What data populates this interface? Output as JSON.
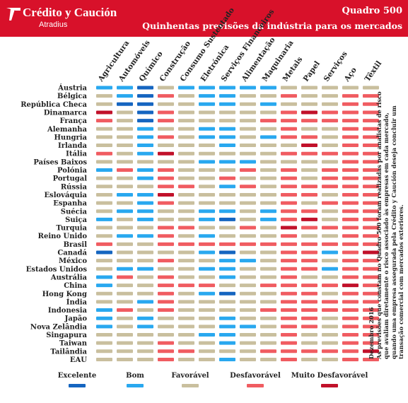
{
  "header": {
    "brand": "Crédito y Caución",
    "brand_sub": "Atradius",
    "title": "Quadro 500",
    "subtitle": "Quinhentas previsões da indústria para os mercados"
  },
  "note": {
    "date": "Dezembro 2016",
    "text": "As previsões que constam no Quadro 500 foram realizadas por analistas de risco que avaliam diretamente o risco associado às empresas em cada mercado, quando uma empresa assegurada pela Crédito y Caución deseja concluir um transação comercial com mercados exteriores."
  },
  "colors": {
    "banner": "#d8112a",
    "excelente": "#1565c0",
    "bom": "#29a8ef",
    "favoravel": "#c9bf9e",
    "desfavoravel": "#f05c61",
    "muito_desfavoravel": "#c1112a"
  },
  "chart_data": {
    "type": "heatmap",
    "title": "Quadro 500",
    "categories": [
      "Agricultura",
      "Automóveis",
      "Químico",
      "Construção",
      "Consumo Sustentado",
      "Eletrónica",
      "Serviços Financeiros",
      "Alimentação",
      "Maquinaria",
      "Metais",
      "Papel",
      "Serviços",
      "Aço",
      "Têxtil"
    ],
    "countries": [
      "Áustria",
      "Bélgica",
      "República Checa",
      "Dinamarca",
      "França",
      "Alemanha",
      "Hungria",
      "Irlanda",
      "Itália",
      "Países Baixos",
      "Polónia",
      "Portugal",
      "Rússia",
      "Eslováquia",
      "Espanha",
      "Suécia",
      "Suiça",
      "Turquia",
      "Reino Unido",
      "Brasil",
      "Canadá",
      "México",
      "Estados Unidos",
      "Austrália",
      "China",
      "Hong Kong",
      "Índia",
      "Indonesia",
      "Japão",
      "Nova Zelândia",
      "Singapura",
      "Taiwan",
      "Tailândia",
      "EAU"
    ],
    "legend": [
      {
        "level": 1,
        "label": "Excelente"
      },
      {
        "level": 2,
        "label": "Bom"
      },
      {
        "level": 3,
        "label": "Favorável"
      },
      {
        "level": 4,
        "label": "Desfavorável"
      },
      {
        "level": 5,
        "label": "Muito Desfavorável"
      }
    ],
    "values": [
      [
        2,
        2,
        1,
        3,
        2,
        2,
        2,
        2,
        2,
        3,
        3,
        3,
        3,
        3
      ],
      [
        3,
        2,
        1,
        4,
        3,
        2,
        2,
        3,
        3,
        4,
        3,
        3,
        4,
        4
      ],
      [
        3,
        1,
        1,
        3,
        3,
        2,
        2,
        3,
        2,
        3,
        3,
        3,
        4,
        4
      ],
      [
        5,
        3,
        1,
        4,
        3,
        3,
        3,
        3,
        3,
        4,
        5,
        4,
        4,
        4
      ],
      [
        4,
        3,
        1,
        4,
        3,
        3,
        3,
        3,
        4,
        4,
        4,
        4,
        4,
        4
      ],
      [
        3,
        3,
        2,
        3,
        3,
        2,
        2,
        3,
        3,
        4,
        3,
        3,
        4,
        4
      ],
      [
        3,
        3,
        2,
        4,
        3,
        2,
        2,
        3,
        2,
        4,
        4,
        3,
        4,
        4
      ],
      [
        3,
        3,
        2,
        3,
        3,
        3,
        2,
        3,
        3,
        3,
        5,
        3,
        4,
        4
      ],
      [
        4,
        3,
        2,
        5,
        3,
        3,
        3,
        3,
        3,
        4,
        4,
        4,
        4,
        4
      ],
      [
        3,
        3,
        3,
        3,
        3,
        2,
        2,
        2,
        3,
        3,
        3,
        3,
        4,
        4
      ],
      [
        2,
        4,
        2,
        4,
        3,
        3,
        3,
        4,
        3,
        4,
        3,
        4,
        4,
        4
      ],
      [
        3,
        3,
        2,
        4,
        3,
        3,
        4,
        3,
        3,
        4,
        3,
        4,
        4,
        4
      ],
      [
        3,
        3,
        3,
        4,
        4,
        3,
        2,
        4,
        3,
        4,
        4,
        4,
        4,
        4
      ],
      [
        3,
        2,
        2,
        5,
        3,
        3,
        3,
        3,
        3,
        4,
        4,
        3,
        4,
        4
      ],
      [
        3,
        3,
        2,
        4,
        3,
        3,
        3,
        3,
        3,
        4,
        3,
        4,
        4,
        4
      ],
      [
        3,
        2,
        2,
        3,
        3,
        2,
        2,
        3,
        2,
        4,
        4,
        3,
        4,
        4
      ],
      [
        2,
        3,
        2,
        3,
        3,
        2,
        1,
        3,
        2,
        4,
        5,
        3,
        4,
        4
      ],
      [
        3,
        3,
        3,
        4,
        4,
        3,
        3,
        4,
        3,
        5,
        4,
        4,
        4,
        4
      ],
      [
        3,
        2,
        2,
        4,
        3,
        2,
        3,
        3,
        3,
        4,
        3,
        3,
        4,
        4
      ],
      [
        4,
        3,
        3,
        4,
        4,
        4,
        4,
        4,
        4,
        4,
        4,
        4,
        4,
        4
      ],
      [
        1,
        3,
        3,
        3,
        3,
        2,
        1,
        3,
        3,
        4,
        4,
        2,
        4,
        5
      ],
      [
        3,
        3,
        3,
        4,
        3,
        3,
        2,
        2,
        3,
        4,
        4,
        3,
        4,
        4
      ],
      [
        3,
        2,
        2,
        3,
        3,
        2,
        2,
        3,
        3,
        4,
        4,
        2,
        4,
        4
      ],
      [
        2,
        4,
        3,
        4,
        3,
        3,
        2,
        3,
        3,
        4,
        3,
        3,
        4,
        4
      ],
      [
        2,
        3,
        3,
        4,
        4,
        4,
        3,
        3,
        4,
        4,
        4,
        4,
        5,
        4
      ],
      [
        3,
        3,
        3,
        4,
        3,
        2,
        1,
        3,
        3,
        4,
        4,
        3,
        4,
        4
      ],
      [
        3,
        3,
        2,
        4,
        3,
        3,
        3,
        3,
        3,
        4,
        4,
        4,
        4,
        4
      ],
      [
        2,
        4,
        3,
        4,
        3,
        3,
        3,
        3,
        4,
        4,
        4,
        4,
        4,
        4
      ],
      [
        2,
        3,
        2,
        3,
        3,
        3,
        2,
        3,
        3,
        4,
        4,
        3,
        4,
        4
      ],
      [
        2,
        3,
        2,
        3,
        3,
        3,
        2,
        2,
        3,
        4,
        4,
        3,
        4,
        4
      ],
      [
        3,
        3,
        3,
        3,
        3,
        2,
        2,
        3,
        3,
        4,
        3,
        3,
        4,
        4
      ],
      [
        3,
        3,
        3,
        4,
        3,
        3,
        2,
        3,
        3,
        4,
        3,
        3,
        4,
        4
      ],
      [
        3,
        3,
        3,
        4,
        4,
        3,
        3,
        3,
        4,
        4,
        4,
        4,
        4,
        5
      ],
      [
        3,
        3,
        3,
        4,
        3,
        3,
        2,
        3,
        3,
        4,
        3,
        3,
        4,
        4
      ]
    ]
  }
}
